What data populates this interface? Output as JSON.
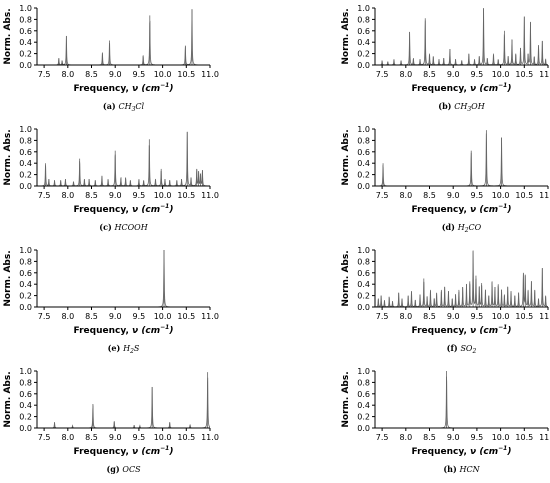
{
  "colors": {
    "line": "#666666",
    "axis": "#000000",
    "background": "#ffffff"
  },
  "axis_labels": {
    "y": "Norm. Abs.",
    "x_prefix": "Frequency, ",
    "x_var": "ν",
    "x_unit_open": " (cm",
    "x_unit_exp": "−1",
    "x_unit_close": ")"
  },
  "chart_data": [
    {
      "type": "line",
      "letter": "(a)",
      "caption_parts": [
        [
          "CH",
          ""
        ],
        [
          "3",
          "sub"
        ],
        [
          "Cl",
          ""
        ]
      ],
      "xlim": [
        7.35,
        11.0
      ],
      "ylim": [
        0,
        1.0
      ],
      "xticks": [
        "7.5",
        "8.0",
        "8.5",
        "9.0",
        "9.5",
        "10.0",
        "10.5",
        "11.0"
      ],
      "yticks": [
        "0.0",
        "0.2",
        "0.4",
        "0.6",
        "0.8",
        "1.0"
      ],
      "series": [
        {
          "peaks": [
            [
              7.81,
              0.12
            ],
            [
              7.88,
              0.08
            ],
            [
              7.97,
              0.51
            ],
            [
              8.73,
              0.22
            ],
            [
              8.88,
              0.43
            ],
            [
              9.59,
              0.17
            ],
            [
              9.73,
              0.87
            ],
            [
              10.48,
              0.34
            ],
            [
              10.62,
              0.98
            ]
          ]
        }
      ]
    },
    {
      "type": "line",
      "letter": "(b)",
      "caption_parts": [
        [
          "CH",
          ""
        ],
        [
          "3",
          "sub"
        ],
        [
          "OH",
          ""
        ]
      ],
      "xlim": [
        7.35,
        11.0
      ],
      "ylim": [
        0,
        1.0
      ],
      "xticks": [
        "7.5",
        "8.0",
        "8.5",
        "9.0",
        "9.5",
        "10.0",
        "10.5",
        "11.0"
      ],
      "yticks": [
        "0.0",
        "0.2",
        "0.4",
        "0.6",
        "0.8",
        "1.0"
      ],
      "series": [
        {
          "peaks": [
            [
              7.5,
              0.08
            ],
            [
              7.62,
              0.06
            ],
            [
              7.75,
              0.1
            ],
            [
              7.9,
              0.08
            ],
            [
              8.08,
              0.58
            ],
            [
              8.16,
              0.12
            ],
            [
              8.3,
              0.1
            ],
            [
              8.41,
              0.82
            ],
            [
              8.5,
              0.2
            ],
            [
              8.58,
              0.15
            ],
            [
              8.7,
              0.1
            ],
            [
              8.8,
              0.12
            ],
            [
              8.93,
              0.28
            ],
            [
              9.05,
              0.1
            ],
            [
              9.18,
              0.08
            ],
            [
              9.33,
              0.2
            ],
            [
              9.45,
              0.1
            ],
            [
              9.55,
              0.15
            ],
            [
              9.64,
              1.0
            ],
            [
              9.72,
              0.12
            ],
            [
              9.85,
              0.2
            ],
            [
              9.95,
              0.1
            ],
            [
              10.08,
              0.6
            ],
            [
              10.16,
              0.15
            ],
            [
              10.24,
              0.45
            ],
            [
              10.32,
              0.2
            ],
            [
              10.42,
              0.3
            ],
            [
              10.5,
              0.85
            ],
            [
              10.58,
              0.2
            ],
            [
              10.63,
              0.75
            ],
            [
              10.71,
              0.15
            ],
            [
              10.8,
              0.35
            ],
            [
              10.88,
              0.42
            ],
            [
              10.95,
              0.1
            ]
          ]
        }
      ]
    },
    {
      "type": "line",
      "letter": "(c)",
      "caption_parts": [
        [
          "HCOOH",
          ""
        ]
      ],
      "xlim": [
        7.35,
        11.0
      ],
      "ylim": [
        0,
        1.0
      ],
      "xticks": [
        "7.5",
        "8.0",
        "8.5",
        "9.0",
        "9.5",
        "10.0",
        "10.5",
        "11.0"
      ],
      "yticks": [
        "0.0",
        "0.2",
        "0.4",
        "0.6",
        "0.8",
        "1.0"
      ],
      "series": [
        {
          "peaks": [
            [
              7.53,
              0.4
            ],
            [
              7.6,
              0.12
            ],
            [
              7.72,
              0.1
            ],
            [
              7.85,
              0.1
            ],
            [
              7.95,
              0.12
            ],
            [
              8.12,
              0.08
            ],
            [
              8.25,
              0.48
            ],
            [
              8.35,
              0.12
            ],
            [
              8.45,
              0.12
            ],
            [
              8.58,
              0.1
            ],
            [
              8.72,
              0.18
            ],
            [
              8.85,
              0.12
            ],
            [
              9.0,
              0.62
            ],
            [
              9.12,
              0.15
            ],
            [
              9.22,
              0.15
            ],
            [
              9.32,
              0.1
            ],
            [
              9.5,
              0.12
            ],
            [
              9.6,
              0.1
            ],
            [
              9.72,
              0.82
            ],
            [
              9.85,
              0.12
            ],
            [
              9.97,
              0.3
            ],
            [
              10.05,
              0.12
            ],
            [
              10.15,
              0.1
            ],
            [
              10.3,
              0.1
            ],
            [
              10.4,
              0.12
            ],
            [
              10.52,
              0.95
            ],
            [
              10.6,
              0.15
            ],
            [
              10.72,
              0.3
            ],
            [
              10.76,
              0.25
            ],
            [
              10.8,
              0.22
            ],
            [
              10.84,
              0.28
            ]
          ]
        }
      ]
    },
    {
      "type": "line",
      "letter": "(d)",
      "caption_parts": [
        [
          "H",
          ""
        ],
        [
          "2",
          "sub"
        ],
        [
          "CO",
          ""
        ]
      ],
      "xlim": [
        7.35,
        11.0
      ],
      "ylim": [
        0,
        1.0
      ],
      "xticks": [
        "7.5",
        "8.0",
        "8.5",
        "9.0",
        "9.5",
        "10.0",
        "10.5",
        "11.0"
      ],
      "yticks": [
        "0.0",
        "0.2",
        "0.4",
        "0.6",
        "0.8",
        "1.0"
      ],
      "series": [
        {
          "peaks": [
            [
              7.52,
              0.4
            ],
            [
              9.38,
              0.62
            ],
            [
              9.7,
              0.98
            ],
            [
              10.02,
              0.85
            ]
          ]
        }
      ]
    },
    {
      "type": "line",
      "letter": "(e)",
      "caption_parts": [
        [
          "H",
          ""
        ],
        [
          "2",
          "sub"
        ],
        [
          "S",
          ""
        ]
      ],
      "xlim": [
        7.35,
        11.0
      ],
      "ylim": [
        0,
        1.0
      ],
      "xticks": [
        "7.5",
        "8.0",
        "8.5",
        "9.0",
        "9.5",
        "10.0",
        "10.5",
        "11.0"
      ],
      "yticks": [
        "0.0",
        "0.2",
        "0.4",
        "0.6",
        "0.8",
        "1.0"
      ],
      "series": [
        {
          "peaks": [
            [
              10.03,
              1.0
            ]
          ]
        }
      ]
    },
    {
      "type": "line",
      "letter": "(f)",
      "caption_parts": [
        [
          "SO",
          ""
        ],
        [
          "2",
          "sub"
        ]
      ],
      "xlim": [
        7.35,
        11.0
      ],
      "ylim": [
        0,
        1.0
      ],
      "xticks": [
        "7.5",
        "8.0",
        "8.5",
        "9.0",
        "9.5",
        "10.0",
        "10.5",
        "11.0"
      ],
      "yticks": [
        "0.0",
        "0.2",
        "0.4",
        "0.6",
        "0.8",
        "1.0"
      ],
      "series": [
        {
          "peaks": [
            [
              7.42,
              0.15
            ],
            [
              7.48,
              0.2
            ],
            [
              7.55,
              0.12
            ],
            [
              7.65,
              0.18
            ],
            [
              7.72,
              0.1
            ],
            [
              7.85,
              0.25
            ],
            [
              7.92,
              0.15
            ],
            [
              8.05,
              0.2
            ],
            [
              8.12,
              0.28
            ],
            [
              8.2,
              0.12
            ],
            [
              8.3,
              0.22
            ],
            [
              8.38,
              0.5
            ],
            [
              8.45,
              0.18
            ],
            [
              8.52,
              0.3
            ],
            [
              8.6,
              0.15
            ],
            [
              8.65,
              0.25
            ],
            [
              8.75,
              0.3
            ],
            [
              8.82,
              0.35
            ],
            [
              8.9,
              0.28
            ],
            [
              8.98,
              0.15
            ],
            [
              9.05,
              0.22
            ],
            [
              9.12,
              0.3
            ],
            [
              9.2,
              0.35
            ],
            [
              9.28,
              0.4
            ],
            [
              9.35,
              0.45
            ],
            [
              9.42,
              0.98
            ],
            [
              9.48,
              0.55
            ],
            [
              9.55,
              0.35
            ],
            [
              9.6,
              0.42
            ],
            [
              9.68,
              0.3
            ],
            [
              9.75,
              0.2
            ],
            [
              9.82,
              0.45
            ],
            [
              9.88,
              0.35
            ],
            [
              9.95,
              0.4
            ],
            [
              10.02,
              0.3
            ],
            [
              10.08,
              0.22
            ],
            [
              10.15,
              0.35
            ],
            [
              10.22,
              0.28
            ],
            [
              10.3,
              0.2
            ],
            [
              10.38,
              0.25
            ],
            [
              10.48,
              0.6
            ],
            [
              10.52,
              0.55
            ],
            [
              10.58,
              0.3
            ],
            [
              10.65,
              0.45
            ],
            [
              10.72,
              0.3
            ],
            [
              10.8,
              0.15
            ],
            [
              10.88,
              0.68
            ],
            [
              10.95,
              0.2
            ]
          ]
        }
      ]
    },
    {
      "type": "line",
      "letter": "(g)",
      "caption_parts": [
        [
          "OCS",
          ""
        ]
      ],
      "xlim": [
        7.35,
        11.0
      ],
      "ylim": [
        0,
        1.0
      ],
      "xticks": [
        "7.5",
        "8.0",
        "8.5",
        "9.0",
        "9.5",
        "10.0",
        "10.5",
        "11.0"
      ],
      "yticks": [
        "0.0",
        "0.2",
        "0.4",
        "0.6",
        "0.8",
        "1.0"
      ],
      "series": [
        {
          "peaks": [
            [
              7.72,
              0.1
            ],
            [
              8.1,
              0.04
            ],
            [
              8.53,
              0.42
            ],
            [
              8.98,
              0.12
            ],
            [
              9.4,
              0.05
            ],
            [
              9.52,
              0.04
            ],
            [
              9.78,
              0.72
            ],
            [
              10.15,
              0.1
            ],
            [
              10.58,
              0.06
            ],
            [
              10.95,
              0.98
            ]
          ]
        }
      ]
    },
    {
      "type": "line",
      "letter": "(h)",
      "caption_parts": [
        [
          "HCN",
          ""
        ]
      ],
      "xlim": [
        7.35,
        11.0
      ],
      "ylim": [
        0,
        1.0
      ],
      "xticks": [
        "7.5",
        "8.0",
        "8.5",
        "9.0",
        "9.5",
        "10.0",
        "10.5",
        "11.0"
      ],
      "yticks": [
        "0.0",
        "0.2",
        "0.4",
        "0.6",
        "0.8",
        "1.0"
      ],
      "series": [
        {
          "peaks": [
            [
              8.86,
              1.0
            ]
          ]
        }
      ]
    }
  ]
}
